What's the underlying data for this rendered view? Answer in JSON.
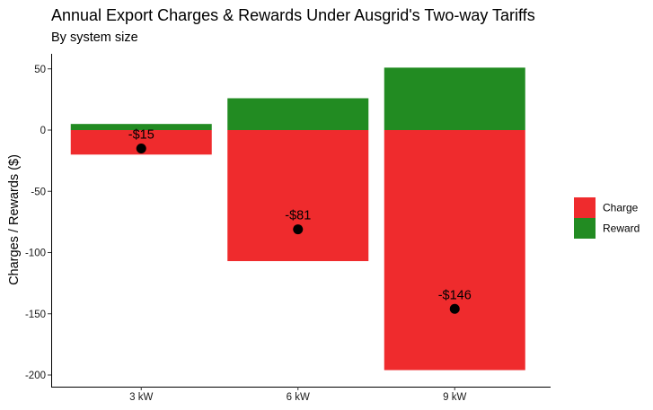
{
  "chart_data": {
    "type": "bar",
    "title": "Annual Export Charges & Rewards Under Ausgrid's Two-way Tariffs",
    "subtitle": "By system size",
    "xlabel": "",
    "ylabel": "Charges / Rewards ($)",
    "categories": [
      "3 kW",
      "6 kW",
      "9 kW"
    ],
    "series": [
      {
        "name": "Charge",
        "color": "#ef2b2d",
        "values": [
          -20,
          -107,
          -196
        ]
      },
      {
        "name": "Reward",
        "color": "#228b22",
        "values": [
          5,
          26,
          51
        ]
      }
    ],
    "net": {
      "values": [
        -15,
        -81,
        -146
      ],
      "labels": [
        "-$15",
        "-$81",
        "-$146"
      ]
    },
    "ylim": [
      -210,
      60
    ],
    "yticks": [
      50,
      0,
      -50,
      -100,
      -150,
      -200
    ],
    "ytick_labels": [
      "50",
      "0",
      "-50",
      "-100",
      "-150",
      "-200"
    ],
    "grid": false,
    "legend_position": "right"
  }
}
